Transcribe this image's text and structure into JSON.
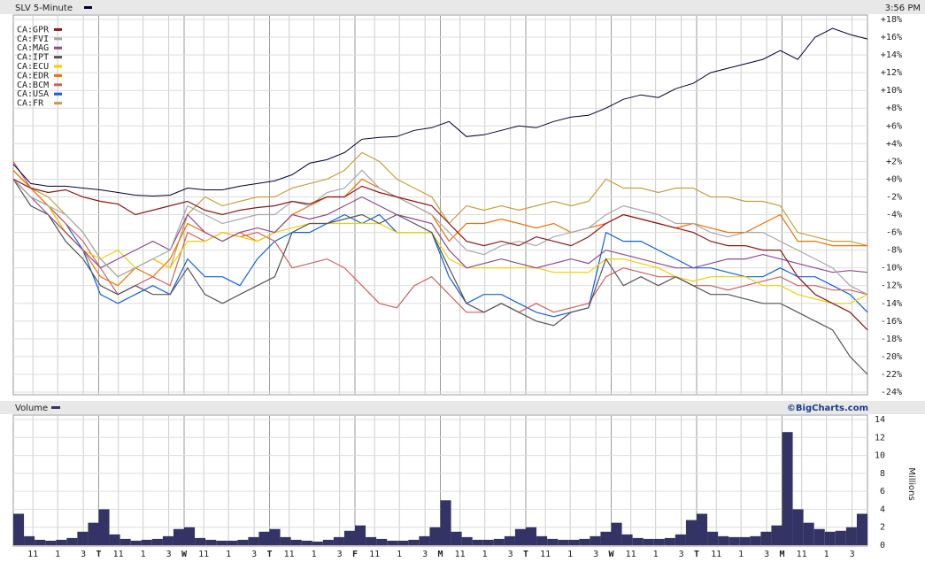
{
  "chart_data": [
    {
      "type": "line",
      "time": "3:56 PM",
      "ylim": [
        -24,
        18
      ],
      "yticks": [
        {
          "value": -24,
          "label": "-24%"
        },
        {
          "value": -22,
          "label": "-22%"
        },
        {
          "value": -20,
          "label": "-20%"
        },
        {
          "value": -18,
          "label": "-18%"
        },
        {
          "value": -16,
          "label": "-16%"
        },
        {
          "value": -14,
          "label": "-14%"
        },
        {
          "value": -12,
          "label": "-12%"
        },
        {
          "value": -10,
          "label": "-10%"
        },
        {
          "value": -8,
          "label": "-8%"
        },
        {
          "value": -6,
          "label": "-6%"
        },
        {
          "value": -4,
          "label": "-4%"
        },
        {
          "value": -2,
          "label": "-2%"
        },
        {
          "value": 0,
          "label": "+0%"
        },
        {
          "value": 2,
          "label": "+2%"
        },
        {
          "value": 4,
          "label": "+4%"
        },
        {
          "value": 6,
          "label": "+6%"
        },
        {
          "value": 8,
          "label": "+8%"
        },
        {
          "value": 10,
          "label": "+10%"
        },
        {
          "value": 12,
          "label": "+12%"
        },
        {
          "value": 14,
          "label": "+14%"
        },
        {
          "value": 16,
          "label": "+16%"
        },
        {
          "value": 18,
          "label": "+18%"
        }
      ],
      "grid": true,
      "series": [
        {
          "name": "SLV 5-Minute",
          "color": "#000033",
          "values": [
            1.7,
            -0.5,
            -0.8,
            -0.8,
            -1,
            -1.2,
            -1.5,
            -1.8,
            -1.9,
            -1.8,
            -1,
            -1.2,
            -1.2,
            -0.8,
            -0.5,
            -0.2,
            0.5,
            1.8,
            2.2,
            3,
            4.5,
            4.7,
            4.8,
            5.5,
            5.8,
            6.5,
            4.8,
            5,
            5.5,
            6,
            5.8,
            6.5,
            7,
            7.2,
            8,
            9,
            9.5,
            9.2,
            10.2,
            10.8,
            12,
            12.5,
            13,
            13.5,
            14.5,
            13.5,
            16,
            17,
            16.3,
            15.8
          ]
        },
        {
          "name": "CA:GPR",
          "color": "#8b1a1a",
          "values": [
            0,
            -1,
            -1.5,
            -1.2,
            -2,
            -2.5,
            -2.8,
            -4,
            -3.5,
            -3,
            -2.5,
            -3.5,
            -4,
            -3.5,
            -3.2,
            -3,
            -2.5,
            -2.8,
            -2,
            -2,
            -0.8,
            -1.5,
            -2,
            -2.5,
            -3,
            -5,
            -7,
            -7.5,
            -7,
            -7.5,
            -6.5,
            -7,
            -7.5,
            -6.5,
            -5,
            -4,
            -4.5,
            -5,
            -5.5,
            -6,
            -7,
            -7.5,
            -7.5,
            -8,
            -8,
            -11,
            -13,
            -14,
            -15,
            -17
          ]
        },
        {
          "name": "CA:FVI",
          "color": "#a8a8a8",
          "values": [
            0,
            -2,
            -3,
            -4,
            -6,
            -9,
            -11,
            -10,
            -9,
            -8,
            -3,
            -4,
            -5,
            -4.5,
            -4,
            -4,
            -2.5,
            -3,
            -1.5,
            -1,
            1,
            -1,
            -2,
            -3,
            -4,
            -6,
            -8,
            -8.5,
            -7.5,
            -7,
            -7.5,
            -6.5,
            -6,
            -5.5,
            -4,
            -3,
            -3.5,
            -4,
            -5,
            -5,
            -6,
            -6.5,
            -6,
            -6,
            -7,
            -8,
            -9,
            -10,
            -12,
            -13
          ]
        },
        {
          "name": "CA:MAG",
          "color": "#8e4b8e",
          "values": [
            0,
            -2,
            -4,
            -6,
            -8,
            -10,
            -9,
            -8,
            -7,
            -8,
            -4,
            -6,
            -7,
            -6,
            -5.5,
            -6,
            -4,
            -4.5,
            -4,
            -3,
            -2,
            -3,
            -4,
            -4.5,
            -5,
            -8,
            -10,
            -9.5,
            -9,
            -9.5,
            -10,
            -9.5,
            -9,
            -9.5,
            -8,
            -8.5,
            -9,
            -9.5,
            -10,
            -10,
            -9.5,
            -9,
            -9,
            -8.5,
            -9,
            -9.5,
            -10,
            -10.5,
            -10.3,
            -10.5
          ]
        },
        {
          "name": "CA:IPT",
          "color": "#555555",
          "values": [
            0,
            -3,
            -4,
            -7,
            -9,
            -12,
            -13,
            -12,
            -13,
            -13,
            -10,
            -13,
            -14,
            -13,
            -12,
            -11,
            -6,
            -5,
            -5,
            -4.5,
            -4,
            -5,
            -4,
            -5,
            -6,
            -10,
            -14,
            -15,
            -14,
            -15,
            -16,
            -16.5,
            -15,
            -14.5,
            -9,
            -12,
            -11,
            -12,
            -11,
            -12,
            -13,
            -13,
            -13.5,
            -14,
            -14,
            -15,
            -16,
            -17,
            -20,
            -22
          ]
        },
        {
          "name": "CA:ECU",
          "color": "#f0d000",
          "values": [
            0,
            -2,
            -3,
            -6,
            -8,
            -9,
            -8,
            -10,
            -9,
            -10,
            -7,
            -7,
            -6,
            -6.5,
            -7,
            -6,
            -5.5,
            -5,
            -5,
            -5,
            -5,
            -5,
            -6,
            -6,
            -6,
            -9,
            -10,
            -10,
            -10,
            -10,
            -10,
            -10.5,
            -10.5,
            -10.5,
            -9,
            -9,
            -9.5,
            -10,
            -11,
            -11.5,
            -11,
            -11,
            -11,
            -12,
            -12,
            -13,
            -13.5,
            -14,
            -14,
            -13
          ]
        },
        {
          "name": "CA:EDR",
          "color": "#f07000",
          "values": [
            1,
            -1,
            -3,
            -6,
            -8,
            -11,
            -12,
            -10,
            -11,
            -9,
            -5,
            -6,
            -7,
            -6,
            -7,
            -6,
            -4,
            -3,
            -2,
            -2,
            0,
            -1,
            -2,
            -3,
            -4,
            -7,
            -5,
            -5,
            -4.5,
            -5,
            -5.5,
            -5,
            -6,
            -5.5,
            -5,
            -4,
            -4.5,
            -5,
            -5.5,
            -5,
            -5.5,
            -6,
            -6,
            -5,
            -4,
            -7,
            -7,
            -7.5,
            -7.5,
            -7.5
          ]
        },
        {
          "name": "CA:BCM",
          "color": "#d06060",
          "values": [
            2,
            -1,
            -3,
            -5,
            -7,
            -10,
            -13,
            -12,
            -11,
            -12,
            -6,
            -7,
            -6,
            -6.5,
            -6,
            -7,
            -10,
            -9.5,
            -9,
            -10,
            -12,
            -14,
            -14.5,
            -12,
            -11,
            -13,
            -15,
            -15,
            -14,
            -15,
            -14,
            -15,
            -14.5,
            -14,
            -11,
            -10,
            -10.5,
            -11,
            -11,
            -12,
            -12,
            -12.5,
            -12,
            -11.5,
            -11,
            -12,
            -12,
            -12.5,
            -12.5,
            -13
          ]
        },
        {
          "name": "CA:USA",
          "color": "#1060e0",
          "values": [
            0,
            -2,
            -3,
            -5,
            -8,
            -13,
            -14,
            -13,
            -12,
            -13,
            -9,
            -11,
            -11,
            -12,
            -9,
            -7,
            -6,
            -6,
            -5,
            -4,
            -5,
            -4,
            -6,
            -6,
            -6,
            -11,
            -14,
            -13,
            -13,
            -14,
            -15,
            -15.5,
            -15,
            -14.5,
            -6,
            -7,
            -7,
            -8,
            -9,
            -10,
            -10,
            -10.5,
            -11,
            -11,
            -10,
            -11,
            -11,
            -12,
            -13,
            -15
          ]
        },
        {
          "name": "CA:FR",
          "color": "#c8a040",
          "values": [
            1,
            -1,
            -2,
            -4,
            -6,
            -9,
            -11,
            -10,
            -9,
            -10,
            -4,
            -2,
            -3,
            -2.5,
            -2,
            -2,
            -1,
            -0.5,
            0,
            1,
            3,
            2,
            0,
            -1,
            -2,
            -5,
            -3,
            -3.5,
            -3,
            -3.5,
            -3,
            -2.5,
            -3,
            -2.5,
            0,
            -1,
            -1,
            -1.5,
            -1,
            -1,
            -2,
            -2,
            -2.5,
            -2.5,
            -3,
            -6,
            -6.5,
            -7,
            -7,
            -7.5
          ]
        }
      ]
    },
    {
      "type": "bar",
      "source": "©BigCharts.com",
      "ylabel": "Millions",
      "ylim": [
        0,
        14
      ],
      "yticks": [
        0,
        2,
        4,
        6,
        8,
        10,
        12,
        14
      ],
      "x_labels": [
        null,
        "11",
        "1",
        "3",
        "T",
        "11",
        "1",
        "3",
        "W",
        "11",
        "1",
        "3",
        "T",
        "11",
        "1",
        "3",
        "F",
        "11",
        "1",
        "3",
        "M",
        "11",
        "1",
        "3",
        "T",
        "11",
        "1",
        "3",
        "W",
        "11",
        "1",
        "3",
        "T",
        "11",
        "1",
        "3",
        "M",
        "11",
        "1",
        "3"
      ],
      "series": [
        {
          "name": "Volume",
          "color": "#333366",
          "values": [
            3.5,
            1,
            0.6,
            0.5,
            0.6,
            0.8,
            1.5,
            2.5,
            4,
            1.2,
            0.7,
            0.5,
            0.6,
            0.7,
            1,
            1.8,
            2,
            0.8,
            0.6,
            0.5,
            0.5,
            0.6,
            0.9,
            1.5,
            1.8,
            0.9,
            0.6,
            0.5,
            0.4,
            0.6,
            0.9,
            1.6,
            2.2,
            0.9,
            0.7,
            0.5,
            0.5,
            0.6,
            1,
            2,
            5,
            1.5,
            0.9,
            0.6,
            0.6,
            0.7,
            1,
            1.8,
            2,
            1,
            0.7,
            0.6,
            0.6,
            0.7,
            1,
            1.5,
            2.5,
            1.2,
            0.8,
            0.7,
            0.7,
            0.8,
            1.2,
            2.8,
            3.5,
            1.5,
            1,
            0.9,
            0.9,
            1,
            1.5,
            2.2,
            12.6,
            4,
            2.5,
            1.8,
            1.5,
            1.6,
            2,
            3.5
          ]
        }
      ]
    }
  ]
}
